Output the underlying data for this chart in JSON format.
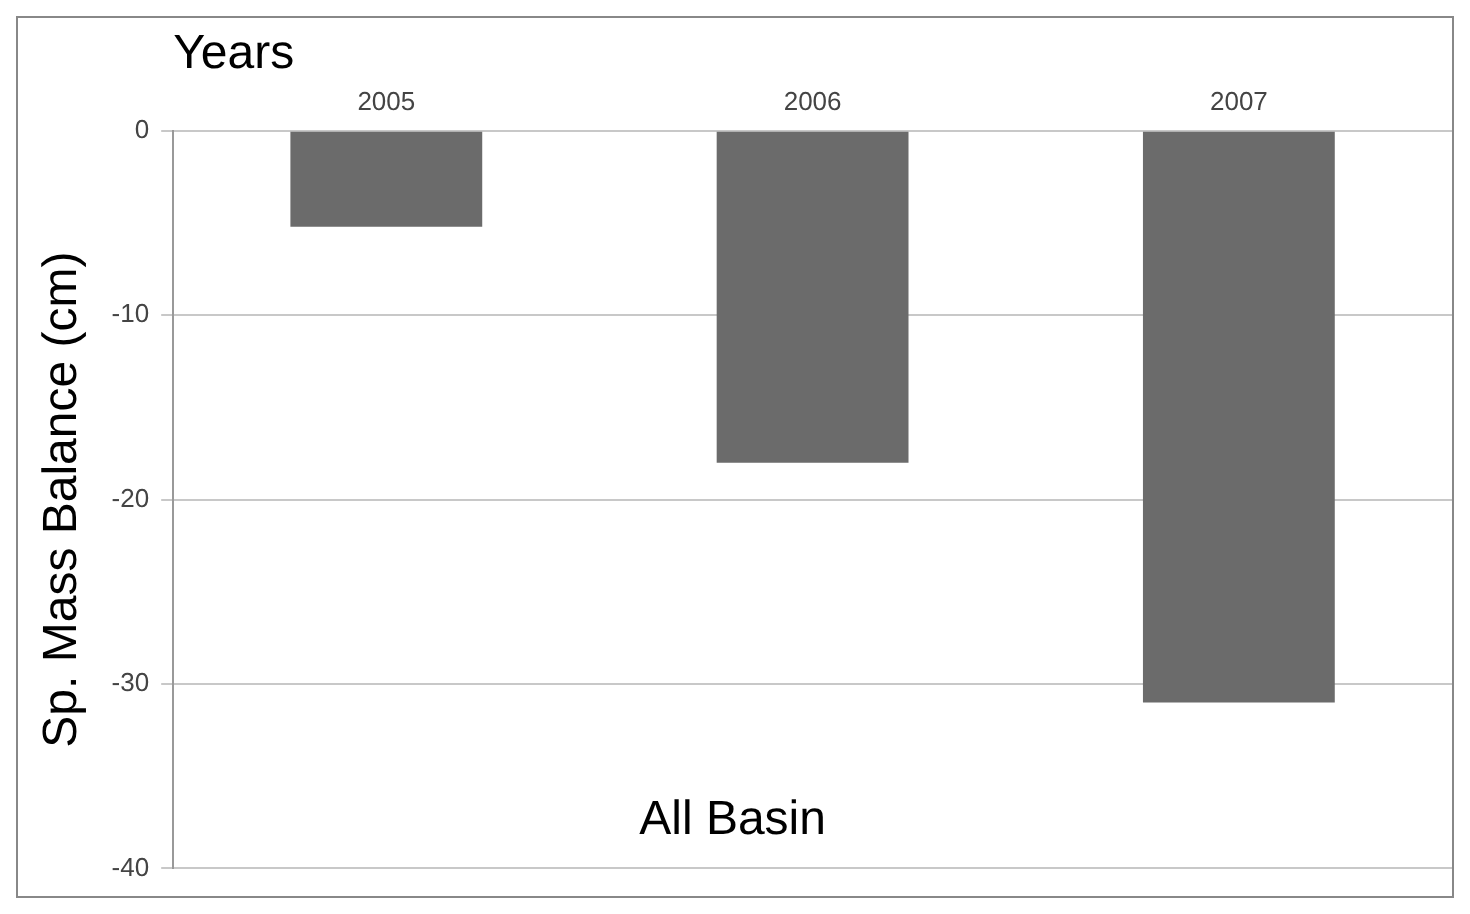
{
  "chart_data": {
    "type": "bar",
    "xlabel": "Years",
    "ylabel": "Sp. Mass Balance (cm)",
    "categories": [
      "2005",
      "2006",
      "2007"
    ],
    "values": [
      -5.2,
      -18,
      -31
    ],
    "color": "#6b6b6b",
    "ylim": [
      -40,
      0
    ],
    "yticks": [
      0,
      -10,
      -20,
      -30,
      -40
    ],
    "grid": "y",
    "legend": false,
    "annotations": [
      "All Basin"
    ]
  }
}
